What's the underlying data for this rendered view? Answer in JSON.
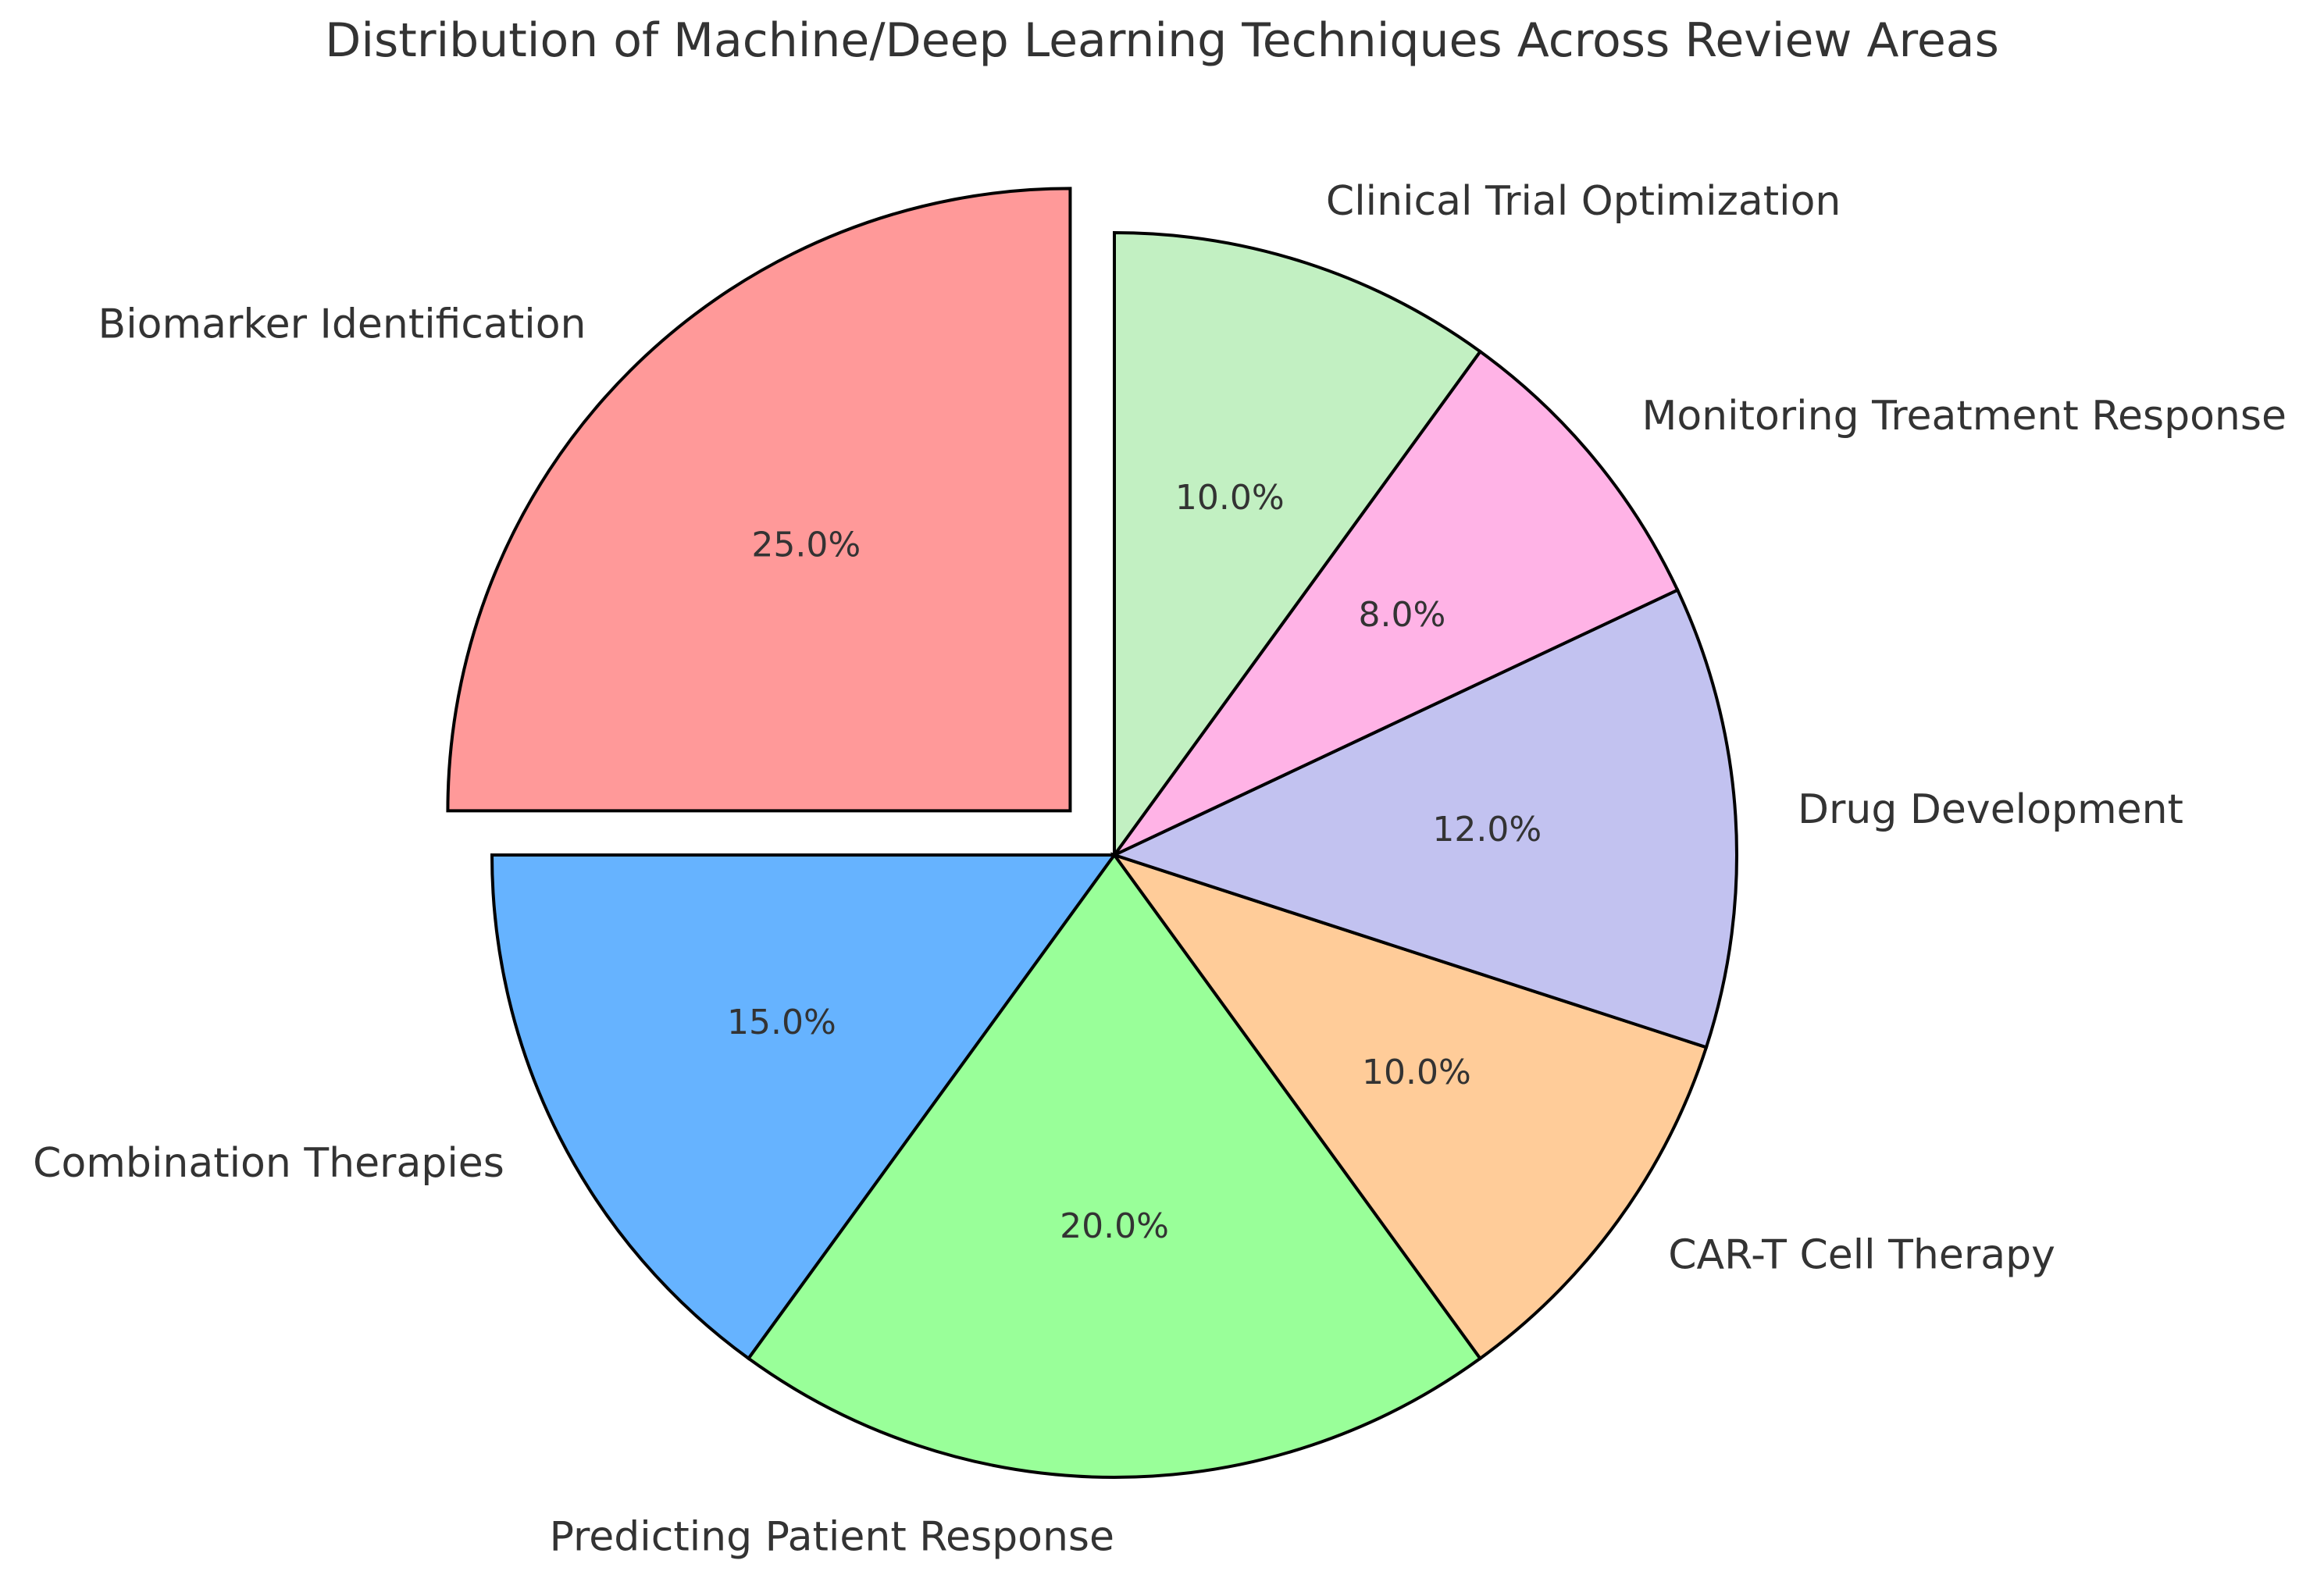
{
  "chart_data": {
    "type": "pie",
    "title": "Distribution of Machine/Deep Learning Techniques Across Review Areas",
    "categories": [
      "Biomarker Identification",
      "Combination Therapies",
      "Predicting Patient Response",
      "CAR-T Cell Therapy",
      "Drug Development",
      "Monitoring Treatment Response",
      "Clinical Trial Optimization"
    ],
    "values": [
      25,
      15,
      20,
      10,
      12,
      8,
      10
    ],
    "percent_labels": [
      "25.0%",
      "15.0%",
      "20.0%",
      "10.0%",
      "12.0%",
      "8.0%",
      "10.0%"
    ],
    "colors": [
      "#ff9999",
      "#66b3ff",
      "#99ff99",
      "#ffcc99",
      "#c2c2f0",
      "#ffb3e6",
      "#c2f0c2"
    ],
    "start_angle_deg": 90,
    "direction": "counterclockwise",
    "exploded": [
      "Biomarker Identification"
    ],
    "legend": "none"
  }
}
